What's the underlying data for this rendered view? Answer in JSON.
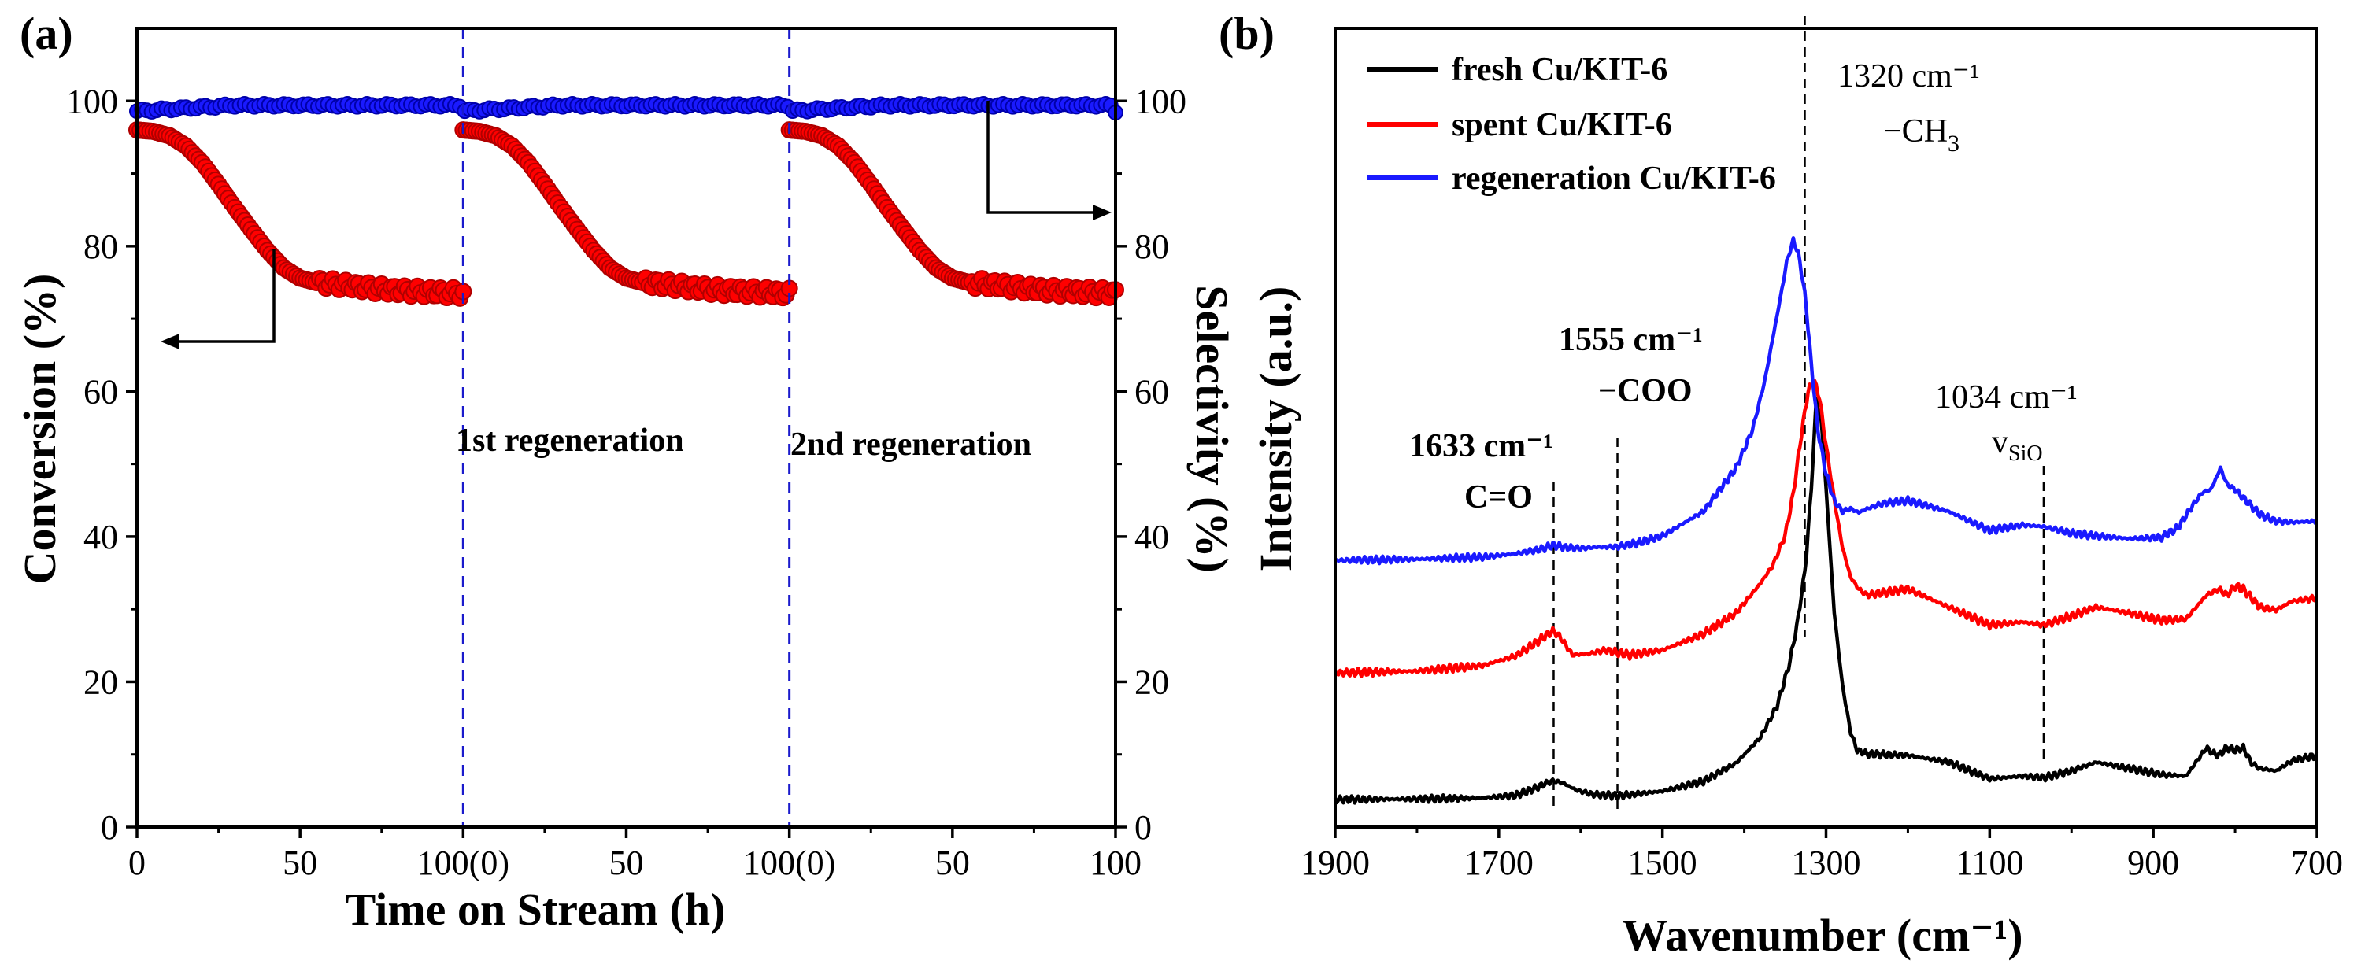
{
  "chart_data": [
    {
      "panel": "(a)",
      "type": "scatter",
      "title": "",
      "xlabel": "Time on Stream (h)",
      "ylabel_left": "Conversion (%)",
      "ylabel_right": "Selectivity (%)",
      "xlim": [
        0,
        300
      ],
      "ylim_left": [
        0,
        110
      ],
      "ylim_right": [
        0,
        110
      ],
      "x_tick_values": [
        0,
        50,
        100,
        150,
        200,
        250,
        300
      ],
      "x_tick_labels": [
        "0",
        "50",
        "100(0)",
        "50",
        "100(0)",
        "50",
        "100"
      ],
      "y_ticks_left": [
        "0",
        "20",
        "40",
        "60",
        "80",
        "100"
      ],
      "y_ticks_right": [
        "0",
        "20",
        "40",
        "60",
        "80",
        "100"
      ],
      "regeneration_lines_x": [
        100,
        200
      ],
      "regeneration_labels": [
        "1st regeneration",
        "2nd regeneration"
      ],
      "cycle_profile_conversion": {
        "x": [
          0,
          5,
          10,
          15,
          20,
          25,
          30,
          35,
          40,
          45,
          50,
          55,
          60,
          65,
          70,
          75,
          80,
          85,
          90,
          95,
          100
        ],
        "y": [
          96,
          95.8,
          95.2,
          93.8,
          91.5,
          88.5,
          85.3,
          82.3,
          79.4,
          77,
          75.6,
          75,
          74.8,
          74.6,
          74.3,
          74.1,
          73.9,
          73.8,
          73.7,
          73.6,
          73.5
        ]
      },
      "series": [
        {
          "name": "Conversion",
          "axis": "left",
          "color": "#ff0000",
          "cycles": 3
        },
        {
          "name": "Selectivity",
          "axis": "right",
          "color": "#1a1aff",
          "value_start": 98.6,
          "value_end": 99.4
        }
      ],
      "annotation_arrows": [
        "Conversion → left axis",
        "Selectivity → right axis"
      ]
    },
    {
      "panel": "(b)",
      "type": "line",
      "title": "",
      "xlabel": "Wavenumber (cm⁻¹)",
      "ylabel": "Intensity (a.u.)",
      "xlim": [
        1900,
        700
      ],
      "x_ticks": [
        "1900",
        "1700",
        "1500",
        "1300",
        "1100",
        "900",
        "700"
      ],
      "series": [
        {
          "name": "fresh Cu/KIT-6",
          "color": "#000000",
          "x": [
            1900,
            1800,
            1720,
            1680,
            1655,
            1640,
            1633,
            1622,
            1605,
            1585,
            1555,
            1500,
            1450,
            1410,
            1380,
            1360,
            1345,
            1335,
            1325,
            1318,
            1312,
            1305,
            1298,
            1290,
            1280,
            1270,
            1262,
            1250,
            1200,
            1150,
            1100,
            1060,
            1034,
            1000,
            970,
            930,
            890,
            860,
            835,
            828,
            820,
            810,
            800,
            790,
            780,
            770,
            750,
            730,
            700
          ],
          "y": [
            0.0,
            0.01,
            0.03,
            0.08,
            0.22,
            0.33,
            0.36,
            0.32,
            0.18,
            0.1,
            0.07,
            0.16,
            0.35,
            0.7,
            1.2,
            1.8,
            2.6,
            3.4,
            4.5,
            6.0,
            7.7,
            7.2,
            5.5,
            3.6,
            2.2,
            1.3,
            0.95,
            0.88,
            0.85,
            0.72,
            0.4,
            0.45,
            0.42,
            0.55,
            0.72,
            0.6,
            0.48,
            0.45,
            1.0,
            0.9,
            0.85,
            1.0,
            0.95,
            1.0,
            0.7,
            0.6,
            0.55,
            0.75,
            0.85
          ]
        },
        {
          "name": "spent Cu/KIT-6",
          "color": "#ff0000",
          "x": [
            1900,
            1800,
            1720,
            1680,
            1655,
            1640,
            1633,
            1625,
            1610,
            1590,
            1570,
            1555,
            1540,
            1500,
            1450,
            1410,
            1380,
            1365,
            1350,
            1340,
            1330,
            1322,
            1315,
            1308,
            1300,
            1290,
            1280,
            1270,
            1260,
            1250,
            1200,
            1150,
            1100,
            1060,
            1034,
            1000,
            970,
            930,
            890,
            860,
            835,
            820,
            810,
            800,
            790,
            780,
            770,
            750,
            730,
            700
          ],
          "y": [
            0.0,
            0.03,
            0.12,
            0.28,
            0.5,
            0.65,
            0.7,
            0.6,
            0.3,
            0.32,
            0.38,
            0.34,
            0.3,
            0.38,
            0.65,
            1.0,
            1.5,
            1.8,
            2.3,
            3.0,
            4.0,
            4.7,
            4.9,
            4.6,
            3.8,
            2.9,
            2.1,
            1.6,
            1.4,
            1.3,
            1.4,
            1.1,
            0.8,
            0.85,
            0.8,
            0.95,
            1.1,
            1.0,
            0.88,
            0.9,
            1.3,
            1.4,
            1.3,
            1.45,
            1.4,
            1.25,
            1.1,
            1.05,
            1.2,
            1.25
          ]
        },
        {
          "name": "regeneration Cu/KIT-6",
          "color": "#1a1aff",
          "x": [
            1900,
            1800,
            1720,
            1680,
            1650,
            1633,
            1620,
            1600,
            1580,
            1555,
            1530,
            1500,
            1450,
            1410,
            1390,
            1375,
            1365,
            1355,
            1348,
            1340,
            1333,
            1325,
            1318,
            1310,
            1300,
            1290,
            1280,
            1270,
            1260,
            1250,
            1230,
            1200,
            1150,
            1100,
            1060,
            1034,
            1000,
            970,
            930,
            890,
            870,
            850,
            840,
            830,
            825,
            818,
            810,
            800,
            790,
            780,
            770,
            750,
            730,
            700
          ],
          "y": [
            0.0,
            0.02,
            0.06,
            0.12,
            0.2,
            0.28,
            0.24,
            0.22,
            0.24,
            0.25,
            0.32,
            0.45,
            0.9,
            1.7,
            2.4,
            3.3,
            4.1,
            4.9,
            5.5,
            5.9,
            5.6,
            4.8,
            3.6,
            2.4,
            1.6,
            1.1,
            0.9,
            0.95,
            0.88,
            0.95,
            1.05,
            1.1,
            0.9,
            0.55,
            0.65,
            0.62,
            0.5,
            0.45,
            0.4,
            0.42,
            0.6,
            1.05,
            1.25,
            1.3,
            1.45,
            1.7,
            1.4,
            1.3,
            1.15,
            1.0,
            0.85,
            0.72,
            0.7,
            0.72
          ]
        }
      ],
      "annotations": [
        {
          "label": "1320 cm⁻¹",
          "sub": "−CH",
          "sub_index": "3",
          "x": 1320
        },
        {
          "label": "1633 cm⁻¹",
          "sub": "C=O",
          "x": 1633
        },
        {
          "label": "1555 cm⁻¹",
          "sub": "−COO",
          "x": 1555
        },
        {
          "label": "1034 cm⁻¹",
          "sub": "v",
          "sub_index": "SiO",
          "x": 1034
        }
      ]
    }
  ]
}
